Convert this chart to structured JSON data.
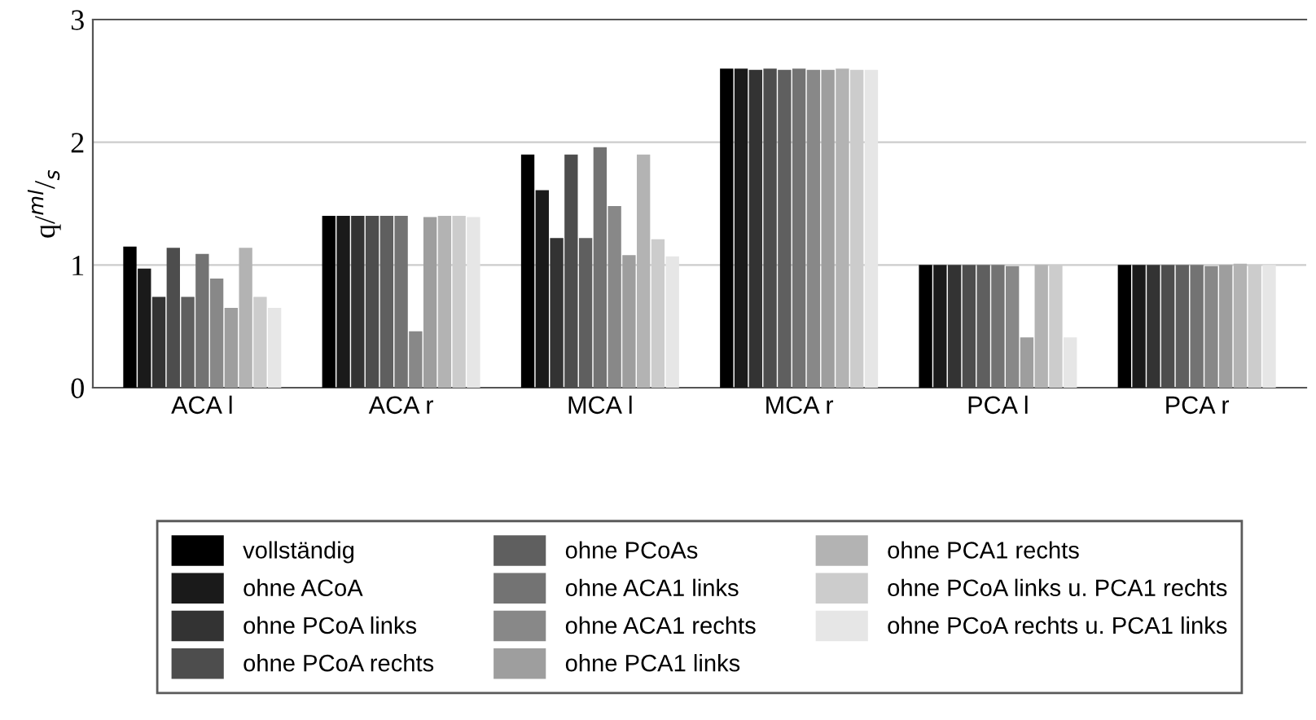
{
  "chart_data": {
    "type": "bar",
    "ylabel": "q/$^{ml}$/$_{s}$",
    "categories": [
      "ACA l",
      "ACA r",
      "MCA l",
      "MCA r",
      "PCA l",
      "PCA r"
    ],
    "ylim": [
      0,
      3
    ],
    "yticks": [
      0,
      1,
      2,
      3
    ],
    "grid": "y",
    "legend": "bottom",
    "series": [
      {
        "name": "vollständig",
        "color": "#000000",
        "values": [
          1.15,
          1.4,
          1.9,
          2.6,
          1.0,
          1.0
        ]
      },
      {
        "name": "ohne ACoA",
        "color": "#1a1a1a",
        "values": [
          0.97,
          1.4,
          1.61,
          2.6,
          1.0,
          1.0
        ]
      },
      {
        "name": "ohne PCoA links",
        "color": "#333333",
        "values": [
          0.74,
          1.4,
          1.22,
          2.59,
          1.0,
          1.0
        ]
      },
      {
        "name": "ohne PCoA rechts",
        "color": "#4d4d4d",
        "values": [
          1.14,
          1.4,
          1.9,
          2.6,
          1.0,
          1.0
        ]
      },
      {
        "name": "ohne PCoAs",
        "color": "#5f5f5f",
        "values": [
          0.74,
          1.4,
          1.22,
          2.59,
          1.0,
          1.0
        ]
      },
      {
        "name": "ohne ACA1 links",
        "color": "#737373",
        "values": [
          1.09,
          1.4,
          1.96,
          2.6,
          1.0,
          1.0
        ]
      },
      {
        "name": "ohne ACA1 rechts",
        "color": "#888888",
        "values": [
          0.89,
          0.46,
          1.48,
          2.59,
          0.99,
          0.99
        ]
      },
      {
        "name": "ohne PCA1 links",
        "color": "#9e9e9e",
        "values": [
          0.65,
          1.39,
          1.08,
          2.59,
          0.41,
          1.0
        ]
      },
      {
        "name": "ohne PCA1 rechts",
        "color": "#b3b3b3",
        "values": [
          1.14,
          1.4,
          1.9,
          2.6,
          1.0,
          1.01
        ]
      },
      {
        "name": "ohne PCoA links u. PCA1 rechts",
        "color": "#cccccc",
        "values": [
          0.74,
          1.4,
          1.21,
          2.59,
          1.0,
          1.0
        ]
      },
      {
        "name": "ohne PCoA rechts u. PCA1 links",
        "color": "#e6e6e6",
        "values": [
          0.65,
          1.39,
          1.07,
          2.59,
          0.41,
          1.0
        ]
      }
    ]
  }
}
